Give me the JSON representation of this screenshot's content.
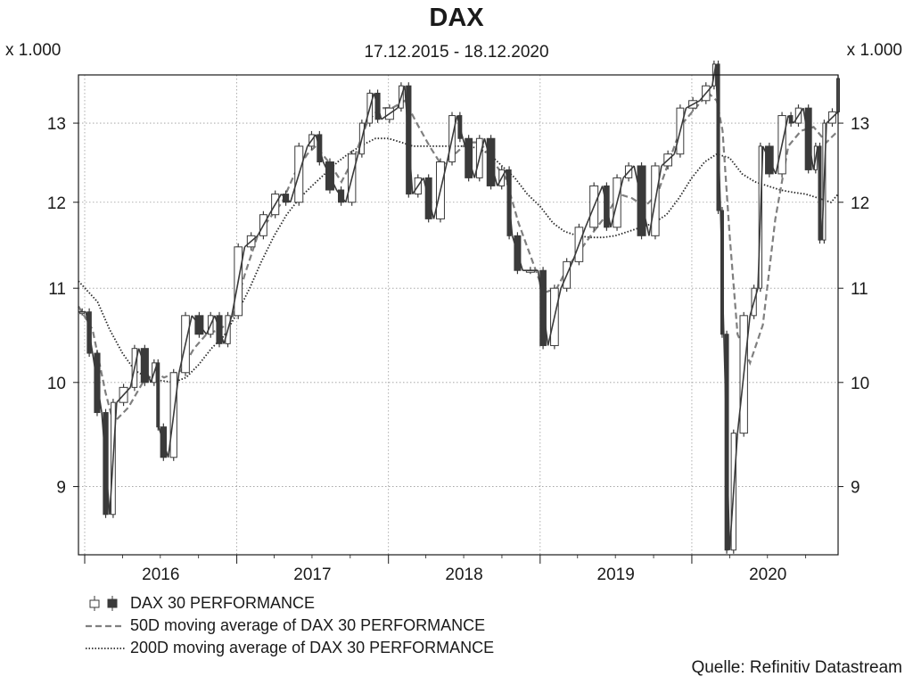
{
  "chart_data": {
    "type": "line",
    "title": "DAX",
    "subtitle": "17.12.2015 - 18.12.2020",
    "y_unit_left": "x 1.000",
    "y_unit_right": "x 1.000",
    "y_ticks": [
      9,
      10,
      11,
      12,
      13
    ],
    "ylim": [
      8.4,
      13.65
    ],
    "y_scale": "log",
    "x_ticks": [
      "2016",
      "2017",
      "2018",
      "2019",
      "2020"
    ],
    "xlim": [
      "2015-12-17",
      "2020-12-18"
    ],
    "grid": true,
    "legend_position": "bottom-left",
    "x": [
      "2015-12-17",
      "2016-01-04",
      "2016-01-20",
      "2016-02-11",
      "2016-03-01",
      "2016-03-18",
      "2016-04-20",
      "2016-05-10",
      "2016-06-08",
      "2016-06-24",
      "2016-06-27",
      "2016-07-20",
      "2016-08-15",
      "2016-09-15",
      "2016-10-20",
      "2016-11-09",
      "2016-12-01",
      "2016-12-20",
      "2017-01-20",
      "2017-02-20",
      "2017-03-20",
      "2017-04-18",
      "2017-05-10",
      "2017-06-20",
      "2017-07-10",
      "2017-07-28",
      "2017-08-29",
      "2017-09-20",
      "2017-10-20",
      "2017-11-07",
      "2017-11-27",
      "2017-12-15",
      "2018-01-23",
      "2018-02-09",
      "2018-02-28",
      "2018-03-26",
      "2018-04-20",
      "2018-05-22",
      "2018-06-15",
      "2018-06-29",
      "2018-07-27",
      "2018-08-20",
      "2018-09-20",
      "2018-10-11",
      "2018-10-26",
      "2018-11-20",
      "2018-12-27",
      "2019-01-20",
      "2019-02-20",
      "2019-03-20",
      "2019-04-20",
      "2019-05-31",
      "2019-06-20",
      "2019-07-20",
      "2019-08-15",
      "2019-09-20",
      "2019-10-20",
      "2019-11-20",
      "2019-12-18",
      "2020-01-20",
      "2020-02-19",
      "2020-02-28",
      "2020-03-10",
      "2020-03-18",
      "2020-04-01",
      "2020-04-20",
      "2020-05-20",
      "2020-06-08",
      "2020-06-20",
      "2020-07-21",
      "2020-08-20",
      "2020-09-02",
      "2020-09-25",
      "2020-10-20",
      "2020-10-30",
      "2020-11-09",
      "2020-11-20",
      "2020-12-18"
    ],
    "series": [
      {
        "name": "DAX 30 PERFORMANCE",
        "style": "candlestick",
        "values": [
          10.74,
          10.3,
          9.7,
          8.75,
          9.8,
          9.95,
          10.35,
          10.0,
          10.2,
          9.56,
          9.27,
          10.1,
          10.7,
          10.5,
          10.7,
          10.4,
          10.7,
          11.47,
          11.6,
          11.85,
          12.1,
          12.0,
          12.7,
          12.85,
          12.5,
          12.15,
          12.0,
          12.6,
          13.0,
          13.4,
          13.05,
          13.2,
          13.5,
          12.1,
          12.3,
          11.8,
          12.5,
          13.1,
          12.8,
          12.3,
          12.8,
          12.2,
          12.4,
          11.6,
          11.2,
          11.2,
          10.38,
          11.0,
          11.3,
          11.7,
          12.2,
          11.7,
          12.3,
          12.45,
          11.6,
          12.45,
          12.6,
          13.2,
          13.3,
          13.5,
          13.8,
          11.9,
          10.5,
          8.44,
          9.5,
          10.7,
          11.0,
          12.7,
          12.35,
          13.1,
          13.0,
          13.2,
          12.4,
          12.7,
          11.55,
          13.0,
          13.15,
          13.6
        ]
      },
      {
        "name": "50D moving average of DAX 30 PERFORMANCE",
        "style": "dashed",
        "x": [
          "2015-12-17",
          "2016-01-20",
          "2016-02-20",
          "2016-03-10",
          "2016-04-15",
          "2016-05-20",
          "2016-06-20",
          "2016-07-10",
          "2016-08-20",
          "2016-09-20",
          "2016-10-20",
          "2016-11-20",
          "2016-12-20",
          "2017-01-20",
          "2017-02-20",
          "2017-03-20",
          "2017-04-20",
          "2017-05-20",
          "2017-06-20",
          "2017-07-10",
          "2017-08-10",
          "2017-09-10",
          "2017-10-10",
          "2017-11-10",
          "2017-12-10",
          "2018-01-10",
          "2018-02-10",
          "2018-03-10",
          "2018-04-10",
          "2018-05-10",
          "2018-06-10",
          "2018-07-10",
          "2018-08-10",
          "2018-09-10",
          "2018-10-10",
          "2018-11-10",
          "2018-12-10",
          "2019-01-10",
          "2019-02-10",
          "2019-03-10",
          "2019-04-10",
          "2019-05-10",
          "2019-06-10",
          "2019-07-10",
          "2019-08-10",
          "2019-09-10",
          "2019-10-10",
          "2019-11-10",
          "2019-12-10",
          "2020-01-10",
          "2020-02-10",
          "2020-03-01",
          "2020-03-15",
          "2020-04-01",
          "2020-04-20",
          "2020-05-20",
          "2020-06-20",
          "2020-07-20",
          "2020-08-20",
          "2020-09-20",
          "2020-10-20",
          "2020-11-20",
          "2020-12-18"
        ],
        "values": [
          10.8,
          10.55,
          9.9,
          9.6,
          9.75,
          10.0,
          10.1,
          10.05,
          10.12,
          10.35,
          10.5,
          10.55,
          10.65,
          11.15,
          11.6,
          11.8,
          12.0,
          12.35,
          12.6,
          12.7,
          12.5,
          12.25,
          12.55,
          13.0,
          13.2,
          13.2,
          13.3,
          13.0,
          12.7,
          12.45,
          12.6,
          12.75,
          12.75,
          12.5,
          12.3,
          11.75,
          11.35,
          10.95,
          11.0,
          11.25,
          11.45,
          11.65,
          11.85,
          12.1,
          12.05,
          11.95,
          12.1,
          12.55,
          13.0,
          13.2,
          13.4,
          13.3,
          12.9,
          11.6,
          10.5,
          10.2,
          10.6,
          11.8,
          12.7,
          12.9,
          12.95,
          12.75,
          12.9
        ]
      },
      {
        "name": "200D moving average of DAX 30 PERFORMANCE",
        "style": "dotted",
        "x": [
          "2015-12-17",
          "2016-02-01",
          "2016-03-01",
          "2016-04-01",
          "2016-05-01",
          "2016-06-01",
          "2016-07-01",
          "2016-08-01",
          "2016-09-01",
          "2016-10-01",
          "2016-11-01",
          "2016-12-01",
          "2017-01-01",
          "2017-02-01",
          "2017-03-01",
          "2017-04-01",
          "2017-05-01",
          "2017-06-01",
          "2017-07-01",
          "2017-08-01",
          "2017-09-01",
          "2017-10-01",
          "2017-11-01",
          "2017-12-01",
          "2018-01-01",
          "2018-02-01",
          "2018-03-01",
          "2018-04-01",
          "2018-05-01",
          "2018-06-01",
          "2018-07-01",
          "2018-08-01",
          "2018-09-01",
          "2018-10-01",
          "2018-11-01",
          "2018-12-01",
          "2019-01-01",
          "2019-02-01",
          "2019-03-01",
          "2019-04-01",
          "2019-05-01",
          "2019-06-01",
          "2019-07-01",
          "2019-08-01",
          "2019-09-01",
          "2019-10-01",
          "2019-11-01",
          "2019-12-01",
          "2020-01-01",
          "2020-02-01",
          "2020-03-01",
          "2020-04-01",
          "2020-05-01",
          "2020-06-01",
          "2020-07-01",
          "2020-08-01",
          "2020-09-01",
          "2020-10-01",
          "2020-11-01",
          "2020-12-01",
          "2020-12-18"
        ],
        "values": [
          11.08,
          10.85,
          10.55,
          10.3,
          10.12,
          10.05,
          10.02,
          10.0,
          10.05,
          10.18,
          10.35,
          10.48,
          10.72,
          11.0,
          11.3,
          11.6,
          11.85,
          12.05,
          12.2,
          12.35,
          12.5,
          12.62,
          12.72,
          12.8,
          12.8,
          12.75,
          12.7,
          12.7,
          12.7,
          12.7,
          12.7,
          12.68,
          12.6,
          12.45,
          12.3,
          12.1,
          11.95,
          11.75,
          11.65,
          11.6,
          11.58,
          11.58,
          11.6,
          11.65,
          11.7,
          11.75,
          11.85,
          12.05,
          12.3,
          12.5,
          12.6,
          12.55,
          12.35,
          12.25,
          12.2,
          12.15,
          12.12,
          12.1,
          12.05,
          12.0,
          12.1
        ]
      }
    ],
    "source": "Quelle: Refinitiv Datastream"
  }
}
